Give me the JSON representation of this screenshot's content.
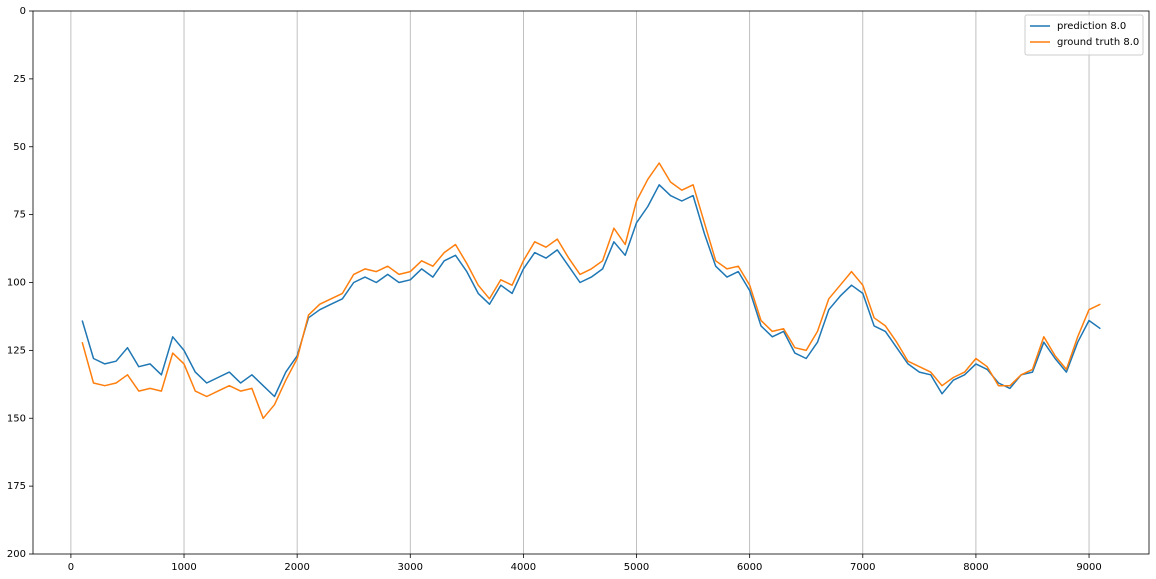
{
  "chart_data": {
    "type": "line",
    "x": [
      100,
      200,
      300,
      400,
      500,
      600,
      700,
      800,
      900,
      1000,
      1100,
      1200,
      1300,
      1400,
      1500,
      1600,
      1700,
      1800,
      1900,
      2000,
      2100,
      2200,
      2300,
      2400,
      2500,
      2600,
      2700,
      2800,
      2900,
      3000,
      3100,
      3200,
      3300,
      3400,
      3500,
      3600,
      3700,
      3800,
      3900,
      4000,
      4100,
      4200,
      4300,
      4400,
      4500,
      4600,
      4700,
      4800,
      4900,
      5000,
      5100,
      5200,
      5300,
      5400,
      5500,
      5600,
      5700,
      5800,
      5900,
      6000,
      6100,
      6200,
      6300,
      6400,
      6500,
      6600,
      6700,
      6800,
      6900,
      7000,
      7100,
      7200,
      7300,
      7400,
      7500,
      7600,
      7700,
      7800,
      7900,
      8000,
      8100,
      8200,
      8300,
      8400,
      8500,
      8600,
      8700,
      8800,
      8900,
      9000,
      9100
    ],
    "series": [
      {
        "name": "prediction 8.0",
        "color": "#1f77b4",
        "values": [
          114,
          128,
          130,
          129,
          124,
          131,
          130,
          134,
          120,
          125,
          133,
          137,
          135,
          133,
          137,
          134,
          138,
          142,
          133,
          127,
          113,
          110,
          108,
          106,
          100,
          98,
          100,
          97,
          100,
          99,
          95,
          98,
          92,
          90,
          96,
          104,
          108,
          101,
          104,
          95,
          89,
          91,
          88,
          94,
          100,
          98,
          95,
          85,
          90,
          78,
          72,
          64,
          68,
          70,
          68,
          82,
          94,
          98,
          96,
          103,
          116,
          120,
          118,
          126,
          128,
          122,
          110,
          105,
          101,
          104,
          116,
          118,
          124,
          130,
          133,
          134,
          141,
          136,
          134,
          130,
          132,
          137,
          139,
          134,
          133,
          122,
          128,
          133,
          122,
          114,
          117
        ]
      },
      {
        "name": "ground truth 8.0",
        "color": "#ff7f0e",
        "values": [
          122,
          137,
          138,
          137,
          134,
          140,
          139,
          140,
          126,
          130,
          140,
          142,
          140,
          138,
          140,
          139,
          150,
          145,
          136,
          128,
          112,
          108,
          106,
          104,
          97,
          95,
          96,
          94,
          97,
          96,
          92,
          94,
          89,
          86,
          93,
          101,
          106,
          99,
          101,
          92,
          85,
          87,
          84,
          91,
          97,
          95,
          92,
          80,
          86,
          70,
          62,
          56,
          63,
          66,
          64,
          78,
          92,
          95,
          94,
          101,
          114,
          118,
          117,
          124,
          125,
          118,
          106,
          101,
          96,
          101,
          113,
          116,
          122,
          129,
          131,
          133,
          138,
          135,
          133,
          128,
          131,
          138,
          138,
          134,
          132,
          120,
          127,
          132,
          120,
          110,
          108
        ]
      }
    ],
    "xlim": [
      -335,
      9530
    ],
    "xticks": [
      0,
      1000,
      2000,
      3000,
      4000,
      5000,
      6000,
      7000,
      8000,
      9000
    ],
    "ylim": [
      0,
      200
    ],
    "yticks": [
      0,
      25,
      50,
      75,
      100,
      125,
      150,
      175,
      200
    ],
    "y_inverted": true,
    "grid": "x",
    "legend": "upper right"
  }
}
